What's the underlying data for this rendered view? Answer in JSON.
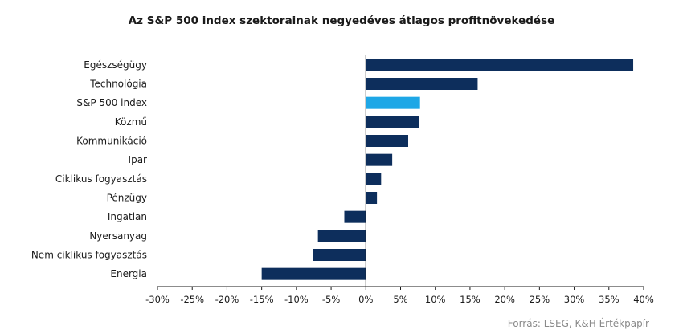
{
  "chart_data": {
    "type": "bar",
    "orientation": "horizontal",
    "title": "Az S&P 500 index szektorainak negyedéves átlagos profitnövekedése",
    "categories": [
      "Egészségügy",
      "Technológia",
      "S&P 500 index",
      "Közmű",
      "Kommunikáció",
      "Ipar",
      "Ciklikus fogyasztás",
      "Pénzügy",
      "Ingatlan",
      "Nyersanyag",
      "Nem ciklikus fogyasztás",
      "Energia"
    ],
    "values": [
      38.5,
      16.1,
      7.8,
      7.7,
      6.1,
      3.8,
      2.2,
      1.6,
      -3.1,
      -6.9,
      -7.6,
      -15.0
    ],
    "highlight_category": "S&P 500 index",
    "colors": {
      "bar": "#0d2e5c",
      "highlight": "#1ea7e6",
      "axis": "#1a1a1a"
    },
    "xlim": [
      -30,
      40
    ],
    "xticks": [
      -30,
      -25,
      -20,
      -15,
      -10,
      -5,
      0,
      5,
      10,
      15,
      20,
      25,
      30,
      35,
      40
    ],
    "tick_suffix": "%",
    "grid": false,
    "legend": "none",
    "source": "Forrás: LSEG, K&H Értékpapír"
  }
}
